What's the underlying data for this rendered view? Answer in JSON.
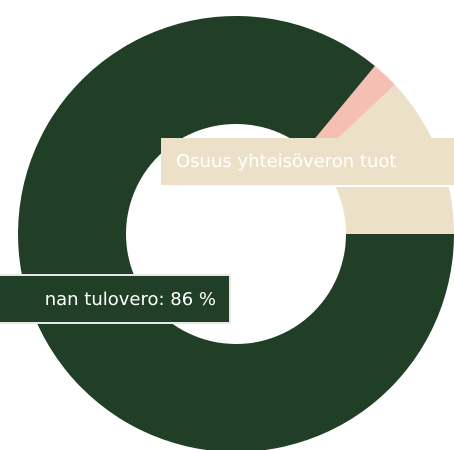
{
  "chart_data": {
    "type": "pie",
    "values": [
      86,
      2,
      12
    ],
    "colors": [
      "#213f26",
      "#f5bfb4",
      "#ede0c8"
    ],
    "annotations": [
      "nan tulovero: 86 %",
      "Osuus yhteisöveron tuot"
    ]
  }
}
